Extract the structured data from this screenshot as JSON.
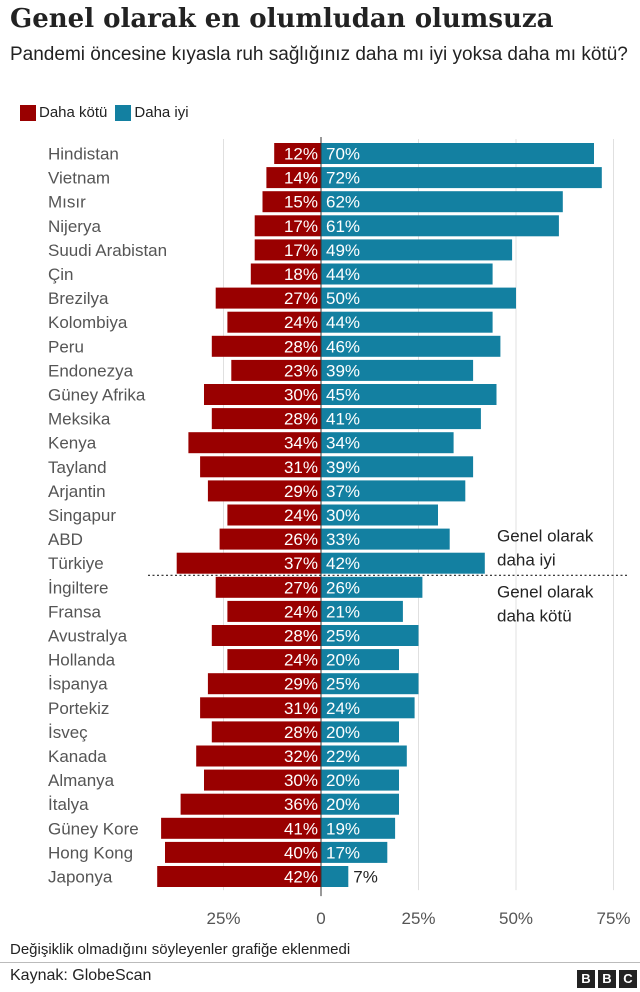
{
  "title": "Genel olarak en olumludan olumsuza",
  "subtitle": "Pandemi öncesine kıyasla ruh sağlığınız daha mı iyi yoksa daha mı kötü?",
  "legend": [
    {
      "label": "Daha kötü",
      "color": "#990000"
    },
    {
      "label": "Daha iyi",
      "color": "#1380a1"
    }
  ],
  "footnote": "Değişiklik olmadığını söyleyenler grafiğe eklenmedi",
  "source": "Kaynak: GlobeScan",
  "logo": [
    "B",
    "B",
    "C"
  ],
  "chart_data": {
    "type": "bar",
    "orientation": "horizontal-diverging",
    "categories": [
      "Hindistan",
      "Vietnam",
      "Mısır",
      "Nijerya",
      "Suudi Arabistan",
      "Çin",
      "Brezilya",
      "Kolombiya",
      "Peru",
      "Endonezya",
      "Güney Afrika",
      "Meksika",
      "Kenya",
      "Tayland",
      "Arjantin",
      "Singapur",
      "ABD",
      "Türkiye",
      "İngiltere",
      "Fransa",
      "Avustralya",
      "Hollanda",
      "İspanya",
      "Portekiz",
      "İsveç",
      "Kanada",
      "Almanya",
      "İtalya",
      "Güney Kore",
      "Hong Kong",
      "Japonya"
    ],
    "series": [
      {
        "name": "Daha kötü",
        "color": "#990000",
        "values": [
          12,
          14,
          15,
          17,
          17,
          18,
          27,
          24,
          28,
          23,
          30,
          28,
          34,
          31,
          29,
          24,
          26,
          37,
          27,
          24,
          28,
          24,
          29,
          31,
          28,
          32,
          30,
          36,
          41,
          40,
          42
        ]
      },
      {
        "name": "Daha iyi",
        "color": "#1380a1",
        "values": [
          70,
          72,
          62,
          61,
          49,
          44,
          50,
          44,
          46,
          39,
          45,
          41,
          34,
          39,
          37,
          30,
          33,
          42,
          26,
          21,
          25,
          20,
          25,
          24,
          20,
          22,
          20,
          20,
          19,
          17,
          7
        ]
      }
    ],
    "value_suffix": "%",
    "xticks": [
      "25%",
      "0",
      "25%",
      "50%",
      "75%"
    ],
    "xlim": [
      -40,
      80
    ],
    "annotations": {
      "above": "Genel olarak daha iyi",
      "below": "Genel olarak daha kötü",
      "split_after": "Türkiye"
    }
  }
}
